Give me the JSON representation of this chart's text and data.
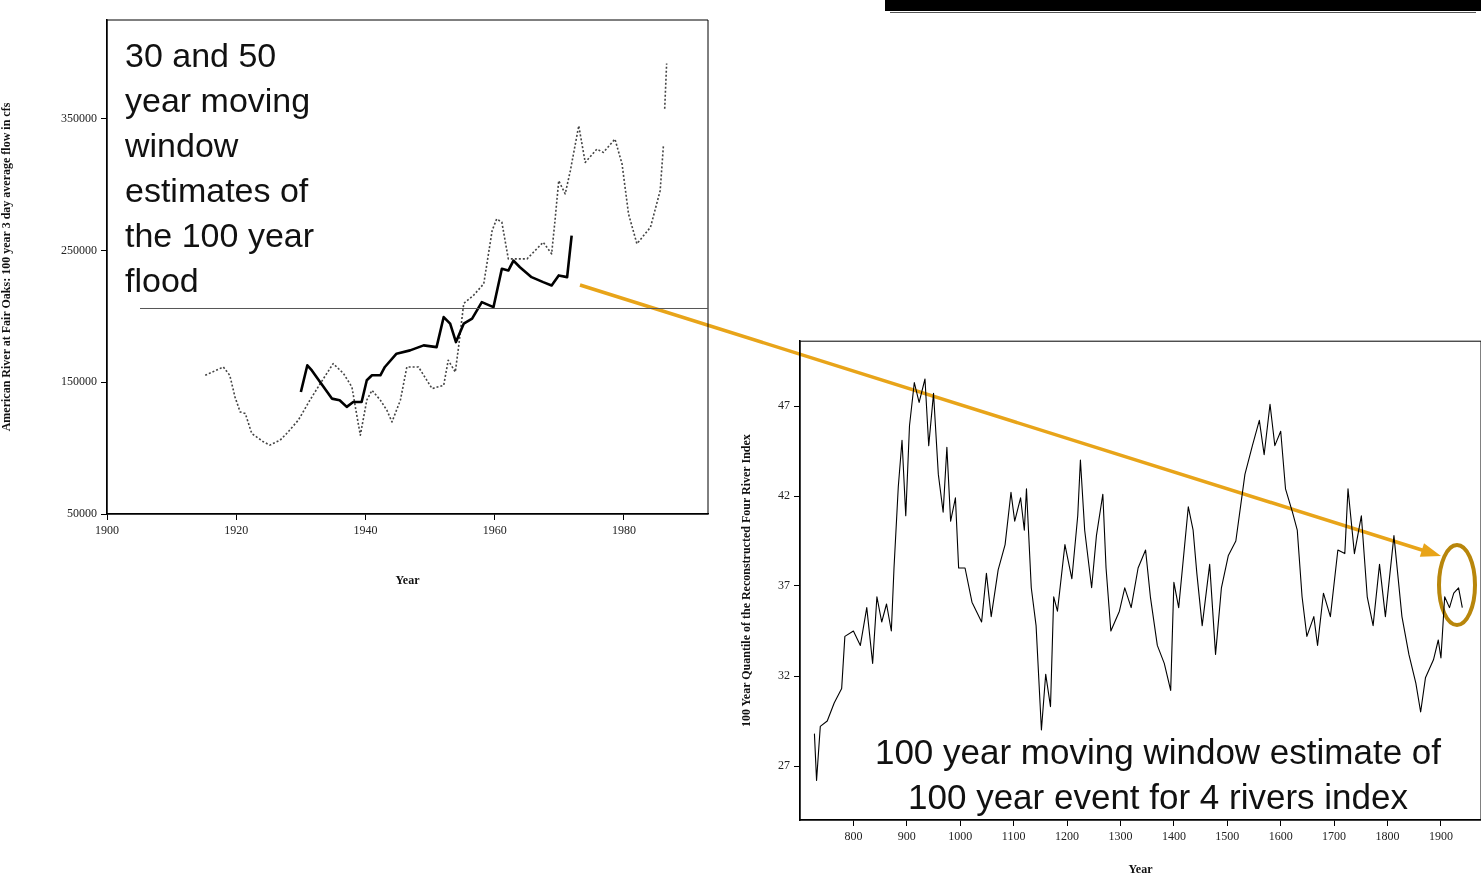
{
  "chart_data": [
    {
      "type": "line",
      "annotations": [
        "30 and 50 year moving window estimates of the 100 year flood"
      ],
      "xlabel": "Year",
      "ylabel": "American River at Fair Oaks: 100 year 3 day average flow in cfs",
      "xlim": [
        1900,
        1993
      ],
      "xticks": [
        1900,
        1920,
        1940,
        1960,
        1980
      ],
      "ylim": [
        50000,
        425000
      ],
      "yticks": [
        50000,
        150000,
        250000,
        350000
      ],
      "grid": false,
      "legend": false,
      "marker": "none",
      "ref_lines": [
        {
          "axis": "y",
          "value": 206000,
          "color": "#555555"
        }
      ],
      "series": [
        {
          "color": "#000000",
          "line_style": "solid",
          "x": [
            1930,
            1931,
            1931.7,
            1933,
            1934.8,
            1936,
            1937.1,
            1938.1,
            1939.4,
            1940.2,
            1941,
            1942.3,
            1943,
            1944.8,
            1946.9,
            1949,
            1951,
            1952.1,
            1953.1,
            1954,
            1955.2,
            1956.5,
            1958,
            1959.8,
            1961.1,
            1962.1,
            1962.9,
            1963.9,
            1965.7,
            1967.5,
            1968.8,
            1969.9,
            1971.2,
            1971.9
          ],
          "values": [
            142600,
            162900,
            159000,
            150000,
            137600,
            136400,
            131300,
            135000,
            135000,
            151500,
            155300,
            155300,
            161600,
            171700,
            174200,
            178000,
            176700,
            199500,
            194500,
            180500,
            194500,
            198300,
            210800,
            207000,
            236100,
            234800,
            242400,
            237300,
            229800,
            226000,
            223500,
            231100,
            229800,
            261400
          ]
        },
        {
          "color": "#444444",
          "line_style": "dotted",
          "x": [
            1915.2,
            1918,
            1919,
            1919.8,
            1920.6,
            1921.4,
            1922.4,
            1924.2,
            1925.2,
            1926.8,
            1927.8,
            1929.6,
            1931.4,
            1933,
            1935,
            1936.6,
            1937.9,
            1938.7,
            1939.2,
            1940.2,
            1941,
            1942.3,
            1943.3,
            1944.1,
            1945.4,
            1946.4,
            1948.2,
            1950.3,
            1952.1,
            1952.8,
            1953.9,
            1954.4,
            1955.2,
            1956.7,
            1958.3,
            1959.6,
            1960.3,
            1961.1,
            1962.1,
            1965,
            1967.5,
            1968.8,
            1969.3,
            1969.9,
            1970.9,
            1971.7,
            1973,
            1974,
            1975.8,
            1976.8,
            1978.6,
            1979.7,
            1980.7,
            1982,
            1984.1,
            1985.6,
            1986.1,
            1986.2,
            1986.3,
            1986.6
          ],
          "values": [
            155300,
            161600,
            155300,
            138900,
            127500,
            126300,
            111100,
            104800,
            102300,
            106100,
            111100,
            121200,
            136400,
            149000,
            164200,
            156600,
            146400,
            123700,
            109800,
            136400,
            143900,
            136400,
            128800,
            119900,
            136400,
            161600,
            161600,
            145200,
            147700,
            166700,
            157800,
            176700,
            209800,
            215900,
            224800,
            265200,
            274000,
            271500,
            243700,
            243700,
            256300,
            247500,
            271500,
            303000,
            293000,
            310600,
            344700,
            316900,
            327000,
            324500,
            334600,
            315700,
            277800,
            255100,
            267700,
            295500,
            329500,
            null,
            357600,
            392000
          ]
        }
      ]
    },
    {
      "type": "line",
      "annotations": [
        "100 year moving window estimate of 100 year event for 4 rivers index"
      ],
      "xlabel": "Year",
      "ylabel": "100 Year Quantile of the Reconstructed Four River Index",
      "xlim": [
        700,
        1975
      ],
      "xticks": [
        800,
        900,
        1000,
        1100,
        1200,
        1300,
        1400,
        1500,
        1600,
        1700,
        1800,
        1900
      ],
      "ylim": [
        24,
        50.6
      ],
      "yticks": [
        27,
        32,
        37,
        42,
        47
      ],
      "grid": false,
      "legend": false,
      "marker": "none",
      "series": [
        {
          "color": "#000000",
          "line_style": "solid",
          "x": [
            727,
            731,
            738,
            751,
            764,
            778,
            784,
            800,
            813,
            825,
            836,
            844,
            853,
            862,
            871,
            876,
            884,
            891,
            898,
            905,
            914,
            923,
            934,
            941,
            950,
            959,
            968,
            975,
            982,
            991,
            997,
            1009,
            1022,
            1040,
            1049,
            1058,
            1071,
            1084,
            1095,
            1102,
            1113,
            1120,
            1124,
            1133,
            1142,
            1152,
            1160,
            1169,
            1175,
            1182,
            1196,
            1209,
            1220,
            1225,
            1233,
            1246,
            1255,
            1267,
            1273,
            1282,
            1298,
            1308,
            1320,
            1333,
            1347,
            1356,
            1369,
            1382,
            1394,
            1400,
            1409,
            1427,
            1436,
            1443,
            1453,
            1467,
            1478,
            1489,
            1502,
            1516,
            1533,
            1547,
            1560,
            1569,
            1580,
            1589,
            1600,
            1609,
            1622,
            1631,
            1640,
            1649,
            1662,
            1669,
            1680,
            1693,
            1707,
            1720,
            1726,
            1738,
            1751,
            1762,
            1773,
            1785,
            1796,
            1812,
            1827,
            1840,
            1853,
            1862,
            1871,
            1886,
            1895,
            1900,
            1907,
            1916,
            1924,
            1933,
            1940
          ],
          "values": [
            28.8,
            26.2,
            29.2,
            29.5,
            30.5,
            31.3,
            34.2,
            34.5,
            33.7,
            35.8,
            32.7,
            36.4,
            35.0,
            36.0,
            34.5,
            38.0,
            42.5,
            45.1,
            40.9,
            45.9,
            48.3,
            47.2,
            48.5,
            44.8,
            47.7,
            43.2,
            41.1,
            44.7,
            40.6,
            41.9,
            38.0,
            38.0,
            36.1,
            35.0,
            37.7,
            35.3,
            37.9,
            39.3,
            42.2,
            40.6,
            41.9,
            40.1,
            42.4,
            36.9,
            34.8,
            29.0,
            32.1,
            30.3,
            36.4,
            35.6,
            39.3,
            37.4,
            40.9,
            44.0,
            40.1,
            36.9,
            39.8,
            42.1,
            38.0,
            34.5,
            35.6,
            36.9,
            35.8,
            38.0,
            39.0,
            36.4,
            33.7,
            32.7,
            31.2,
            37.2,
            35.8,
            41.4,
            40.1,
            37.7,
            34.8,
            38.2,
            33.2,
            36.9,
            38.7,
            39.5,
            43.2,
            44.8,
            46.2,
            44.3,
            47.1,
            44.8,
            45.6,
            42.4,
            41.1,
            40.1,
            36.4,
            34.2,
            35.3,
            33.7,
            36.6,
            35.3,
            39.0,
            38.8,
            42.4,
            38.8,
            40.9,
            36.4,
            34.8,
            38.2,
            35.3,
            39.8,
            35.3,
            33.2,
            31.6,
            30.0,
            31.9,
            32.9,
            34.0,
            33.0,
            36.4,
            35.8,
            36.6,
            36.9,
            35.8
          ]
        }
      ]
    }
  ]
}
